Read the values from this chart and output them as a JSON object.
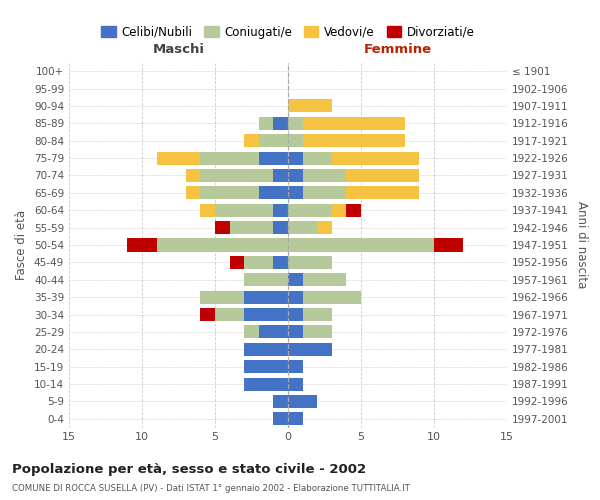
{
  "age_groups": [
    "100+",
    "95-99",
    "90-94",
    "85-89",
    "80-84",
    "75-79",
    "70-74",
    "65-69",
    "60-64",
    "55-59",
    "50-54",
    "45-49",
    "40-44",
    "35-39",
    "30-34",
    "25-29",
    "20-24",
    "15-19",
    "10-14",
    "5-9",
    "0-4"
  ],
  "birth_years": [
    "≤ 1901",
    "1902-1906",
    "1907-1911",
    "1912-1916",
    "1917-1921",
    "1922-1926",
    "1927-1931",
    "1932-1936",
    "1937-1941",
    "1942-1946",
    "1947-1951",
    "1952-1956",
    "1957-1961",
    "1962-1966",
    "1967-1971",
    "1972-1976",
    "1977-1981",
    "1982-1986",
    "1987-1991",
    "1992-1996",
    "1997-2001"
  ],
  "males_celibi": [
    0,
    0,
    0,
    1,
    0,
    2,
    1,
    2,
    1,
    1,
    0,
    1,
    0,
    3,
    3,
    2,
    3,
    3,
    3,
    1,
    1
  ],
  "males_coniugati": [
    0,
    0,
    0,
    1,
    2,
    4,
    5,
    4,
    4,
    3,
    9,
    2,
    3,
    3,
    2,
    1,
    0,
    0,
    0,
    0,
    0
  ],
  "males_vedovi": [
    0,
    0,
    0,
    0,
    1,
    3,
    1,
    1,
    1,
    0,
    0,
    0,
    0,
    0,
    0,
    0,
    0,
    0,
    0,
    0,
    0
  ],
  "males_divorziati": [
    0,
    0,
    0,
    0,
    0,
    0,
    0,
    0,
    0,
    1,
    2,
    1,
    0,
    0,
    1,
    0,
    0,
    0,
    0,
    0,
    0
  ],
  "females_nubili": [
    0,
    0,
    0,
    0,
    0,
    1,
    1,
    1,
    0,
    0,
    0,
    0,
    1,
    1,
    1,
    1,
    3,
    1,
    1,
    2,
    1
  ],
  "females_coniugate": [
    0,
    0,
    0,
    1,
    1,
    2,
    3,
    3,
    3,
    2,
    10,
    3,
    3,
    4,
    2,
    2,
    0,
    0,
    0,
    0,
    0
  ],
  "females_vedove": [
    0,
    0,
    3,
    7,
    7,
    6,
    5,
    5,
    1,
    1,
    0,
    0,
    0,
    0,
    0,
    0,
    0,
    0,
    0,
    0,
    0
  ],
  "females_divorziate": [
    0,
    0,
    0,
    0,
    0,
    0,
    0,
    0,
    1,
    0,
    2,
    0,
    0,
    0,
    0,
    0,
    0,
    0,
    0,
    0,
    0
  ],
  "color_celibi": "#4472c4",
  "color_coniugati": "#b5c99a",
  "color_vedovi": "#f5c242",
  "color_divorziati": "#c00000",
  "title": "Popolazione per età, sesso e stato civile - 2002",
  "subtitle": "COMUNE DI ROCCA SUSELLA (PV) - Dati ISTAT 1° gennaio 2002 - Elaborazione TUTTITALIA.IT",
  "label_maschi": "Maschi",
  "label_femmine": "Femmine",
  "ylabel_left": "Fasce di età",
  "ylabel_right": "Anni di nascita",
  "xlim": 15,
  "legend_labels": [
    "Celibi/Nubili",
    "Coniugati/e",
    "Vedovi/e",
    "Divorziati/e"
  ],
  "bg_color": "#ffffff",
  "grid_color": "#cccccc"
}
